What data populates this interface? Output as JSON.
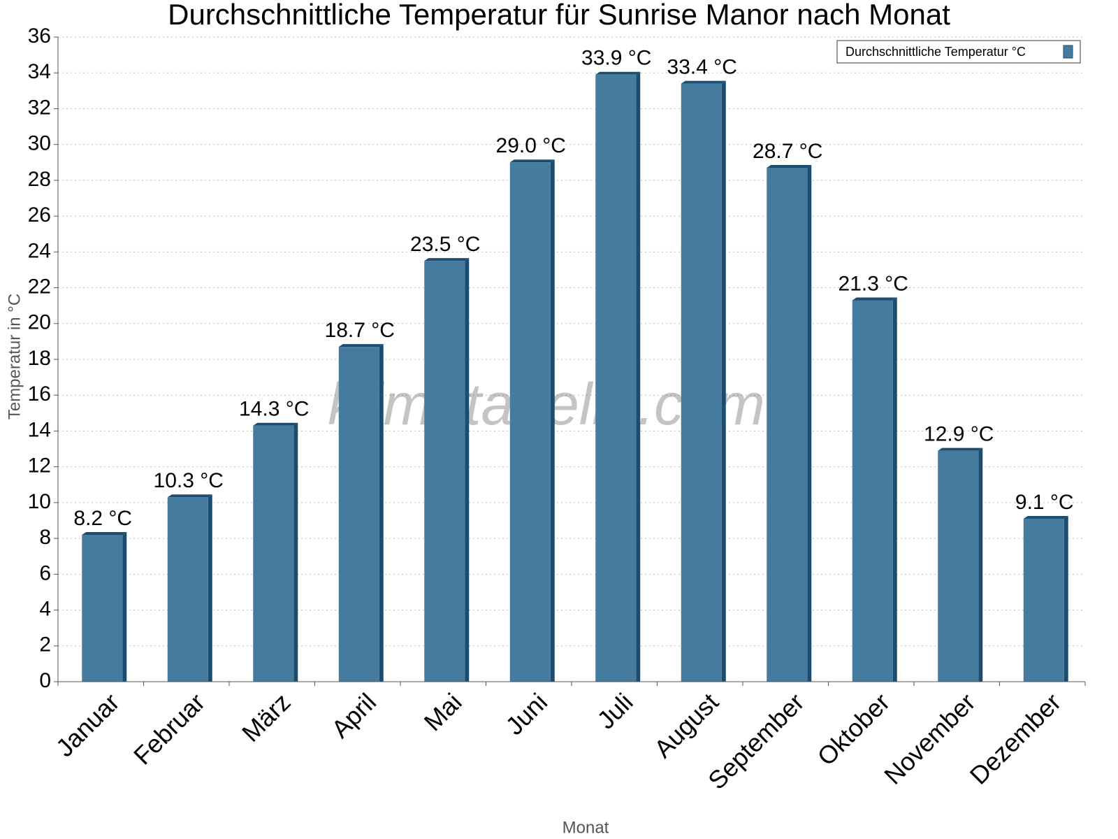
{
  "chart_data": {
    "type": "bar",
    "title": "Durchschnittliche Temperatur für Sunrise Manor nach Monat",
    "x_label": "Monat",
    "y_label": "Temperatur in °C",
    "watermark": "klimatabelle.com",
    "categories": [
      "Januar",
      "Februar",
      "März",
      "April",
      "Mai",
      "Juni",
      "Juli",
      "August",
      "September",
      "Oktober",
      "November",
      "Dezember"
    ],
    "series": [
      {
        "name": "Durchschnittliche Temperatur °C",
        "color": "#467ba0",
        "values": [
          8.2,
          10.3,
          14.3,
          18.7,
          23.5,
          29.0,
          33.9,
          33.4,
          28.7,
          21.3,
          12.9,
          9.1
        ],
        "value_labels": [
          "8.2 °C",
          "10.3 °C",
          "14.3 °C",
          "18.7 °C",
          "23.5 °C",
          "29.0 °C",
          "33.9 °C",
          "33.4 °C",
          "28.7 °C",
          "21.3 °C",
          "12.9 °C",
          "9.1 °C"
        ]
      }
    ],
    "ylim": [
      0,
      36
    ],
    "yticks": [
      0,
      2,
      4,
      6,
      8,
      10,
      12,
      14,
      16,
      18,
      20,
      22,
      24,
      26,
      28,
      30,
      32,
      34,
      36
    ],
    "grid": true,
    "legend": "top-right"
  }
}
